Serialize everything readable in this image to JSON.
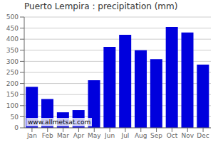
{
  "chart_data": {
    "type": "bar",
    "title": "Puerto Lempira : precipitation (mm)",
    "categories": [
      "Jan",
      "Feb",
      "Mar",
      "Apr",
      "May",
      "Jun",
      "Jul",
      "Aug",
      "Sep",
      "Oct",
      "Nov",
      "Dec"
    ],
    "values": [
      185,
      130,
      70,
      80,
      215,
      365,
      420,
      350,
      310,
      455,
      430,
      285
    ],
    "color": "#0000dd",
    "ylim": [
      0,
      500
    ],
    "yticks": [
      0,
      50,
      100,
      150,
      200,
      250,
      300,
      350,
      400,
      450,
      500
    ],
    "grid": true,
    "annotation": "www.allmetsat.com"
  }
}
